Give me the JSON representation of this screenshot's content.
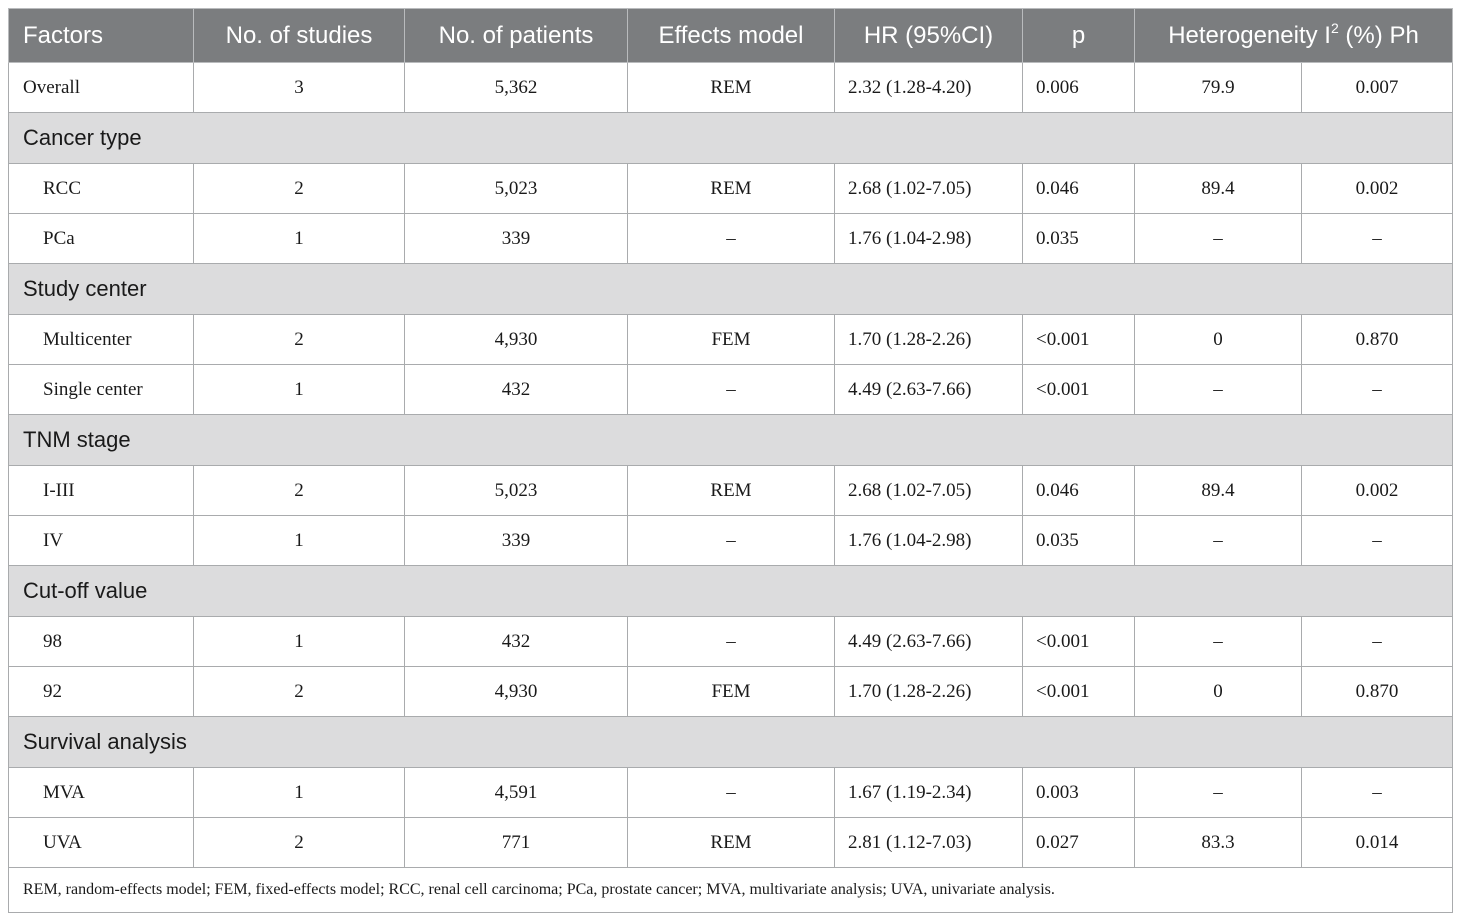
{
  "table": {
    "headers": {
      "factors": "Factors",
      "studies": "No. of studies",
      "patients": "No. of patients",
      "effects_model": "Effects model",
      "hr": "HR (95%CI)",
      "p": "p",
      "heterogeneity_prefix": "Heterogeneity I",
      "heterogeneity_sup": "2",
      "heterogeneity_suffix": " (%)",
      "ph": "Ph"
    },
    "overall": {
      "factor": "Overall",
      "studies": "3",
      "patients": "5,362",
      "model": "REM",
      "hr": "2.32 (1.28-4.20)",
      "p": "0.006",
      "i2": "79.9",
      "ph": "0.007"
    },
    "sections": [
      {
        "title": "Cancer type",
        "rows": [
          {
            "factor": "RCC",
            "studies": "2",
            "patients": "5,023",
            "model": "REM",
            "hr": "2.68 (1.02-7.05)",
            "p": "0.046",
            "i2": "89.4",
            "ph": "0.002"
          },
          {
            "factor": "PCa",
            "studies": "1",
            "patients": "339",
            "model": "–",
            "hr": "1.76 (1.04-2.98)",
            "p": "0.035",
            "i2": "–",
            "ph": "–"
          }
        ]
      },
      {
        "title": "Study center",
        "rows": [
          {
            "factor": "Multicenter",
            "studies": "2",
            "patients": "4,930",
            "model": "FEM",
            "hr": "1.70 (1.28-2.26)",
            "p": "<0.001",
            "i2": "0",
            "ph": "0.870"
          },
          {
            "factor": "Single center",
            "studies": "1",
            "patients": "432",
            "model": "–",
            "hr": "4.49 (2.63-7.66)",
            "p": "<0.001",
            "i2": "–",
            "ph": "–"
          }
        ]
      },
      {
        "title": "TNM stage",
        "rows": [
          {
            "factor": "I-III",
            "studies": "2",
            "patients": "5,023",
            "model": "REM",
            "hr": "2.68 (1.02-7.05)",
            "p": "0.046",
            "i2": "89.4",
            "ph": "0.002"
          },
          {
            "factor": "IV",
            "studies": "1",
            "patients": "339",
            "model": "–",
            "hr": "1.76 (1.04-2.98)",
            "p": "0.035",
            "i2": "–",
            "ph": "–"
          }
        ]
      },
      {
        "title": "Cut-off value",
        "rows": [
          {
            "factor": "98",
            "studies": "1",
            "patients": "432",
            "model": "–",
            "hr": "4.49 (2.63-7.66)",
            "p": "<0.001",
            "i2": "–",
            "ph": "–"
          },
          {
            "factor": "92",
            "studies": "2",
            "patients": "4,930",
            "model": "FEM",
            "hr": "1.70 (1.28-2.26)",
            "p": "<0.001",
            "i2": "0",
            "ph": "0.870"
          }
        ]
      },
      {
        "title": "Survival analysis",
        "rows": [
          {
            "factor": "MVA",
            "studies": "1",
            "patients": "4,591",
            "model": "–",
            "hr": "1.67 (1.19-2.34)",
            "p": "0.003",
            "i2": "–",
            "ph": "–"
          },
          {
            "factor": "UVA",
            "studies": "2",
            "patients": "771",
            "model": "REM",
            "hr": "2.81 (1.12-7.03)",
            "p": "0.027",
            "i2": "83.3",
            "ph": "0.014"
          }
        ]
      }
    ],
    "footnote": "REM, random-effects model; FEM, fixed-effects model; RCC, renal cell carcinoma; PCa, prostate cancer; MVA, multivariate analysis; UVA, univariate analysis."
  },
  "colors": {
    "header_bg": "#7b7d7f",
    "header_text": "#ffffff",
    "section_bg": "#dcdcdd",
    "border": "#a9abad"
  }
}
